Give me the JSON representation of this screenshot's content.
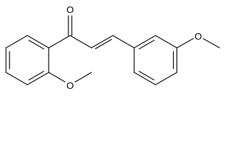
{
  "atoms": [
    {
      "label": "O"
    },
    {
      "label": "O"
    },
    {
      "label": "O"
    }
  ]
}
